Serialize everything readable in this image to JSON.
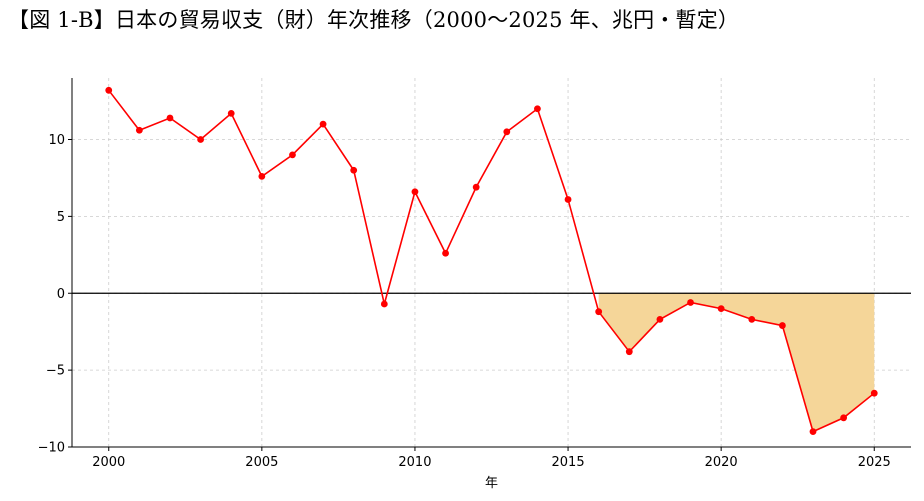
{
  "title": "【図 1-B】日本の貿易収支（財）年次推移（2000〜2025 年、兆円・暫定）",
  "colors": {
    "line": "#ff0000",
    "fill": "#f5d699",
    "grid": "#cccccc",
    "zero_line": "#000000"
  },
  "chart_data": {
    "type": "line",
    "title": "【図 1-B】日本の貿易収支（財）年次推移（2000〜2025 年、兆円・暫定）",
    "xlabel": "年",
    "ylabel": "",
    "x": [
      2000,
      2001,
      2002,
      2003,
      2004,
      2005,
      2006,
      2007,
      2008,
      2009,
      2010,
      2011,
      2012,
      2013,
      2014,
      2015,
      2016,
      2017,
      2018,
      2019,
      2020,
      2021,
      2022,
      2023,
      2024,
      2025
    ],
    "series": [
      {
        "values": [
          13.2,
          10.6,
          11.4,
          10.0,
          11.7,
          7.6,
          9.0,
          11.0,
          8.0,
          -0.7,
          6.6,
          2.6,
          6.9,
          10.5,
          12.0,
          6.1,
          -1.2,
          -3.8,
          -1.7,
          -0.6,
          -1.0,
          -1.7,
          -2.1,
          -9.0,
          -8.1,
          -6.5
        ]
      }
    ],
    "shaded_range": {
      "from": 2016,
      "to": 2025,
      "note": "area between line and zero shaded"
    },
    "xlim": [
      1998.8,
      2026.2
    ],
    "ylim": [
      -10,
      14
    ],
    "xticks": [
      2000,
      2005,
      2010,
      2015,
      2020,
      2025
    ],
    "xtick_labels": [
      "2000",
      "2005",
      "2010",
      "2015",
      "2020",
      "2025"
    ],
    "yticks": [
      -10,
      -5,
      0,
      5,
      10
    ],
    "ytick_labels": [
      "−10",
      "−5",
      "0",
      "5",
      "10"
    ],
    "grid": true,
    "legend": "none"
  }
}
